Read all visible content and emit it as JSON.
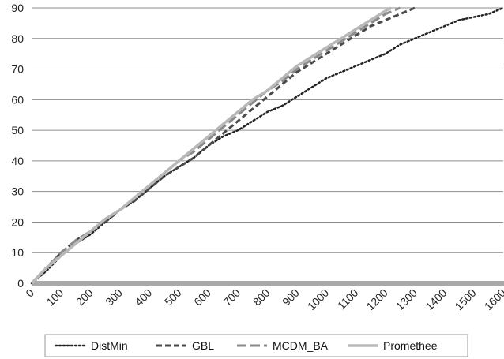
{
  "chart_data": {
    "type": "line",
    "title": "",
    "xlabel": "",
    "ylabel": "",
    "xlim": [
      0,
      1600
    ],
    "ylim": [
      0,
      90
    ],
    "x_ticks": [
      "0",
      "100",
      "200",
      "300",
      "400",
      "500",
      "600",
      "700",
      "800",
      "900",
      "1000",
      "1100",
      "1200",
      "1300",
      "1400",
      "1500",
      "1600"
    ],
    "y_ticks": [
      "0",
      "10",
      "20",
      "30",
      "40",
      "50",
      "60",
      "70",
      "80",
      "90"
    ],
    "grid": "horizontal",
    "legend_position": "bottom",
    "series": [
      {
        "name": "DistMin",
        "color": "#222222",
        "dash": "dotted",
        "points": [
          [
            0,
            0
          ],
          [
            50,
            4
          ],
          [
            100,
            9
          ],
          [
            150,
            13
          ],
          [
            200,
            16
          ],
          [
            250,
            20
          ],
          [
            300,
            24
          ],
          [
            350,
            27
          ],
          [
            400,
            31
          ],
          [
            450,
            35
          ],
          [
            500,
            38
          ],
          [
            550,
            41
          ],
          [
            600,
            45
          ],
          [
            650,
            48
          ],
          [
            700,
            50
          ],
          [
            750,
            53
          ],
          [
            800,
            56
          ],
          [
            850,
            58
          ],
          [
            900,
            61
          ],
          [
            950,
            64
          ],
          [
            1000,
            67
          ],
          [
            1050,
            69
          ],
          [
            1100,
            71
          ],
          [
            1150,
            73
          ],
          [
            1200,
            75
          ],
          [
            1250,
            78
          ],
          [
            1300,
            80
          ],
          [
            1350,
            82
          ],
          [
            1400,
            84
          ],
          [
            1450,
            86
          ],
          [
            1500,
            87
          ],
          [
            1550,
            88
          ],
          [
            1600,
            90
          ]
        ]
      },
      {
        "name": "GBL",
        "color": "#4a4a4a",
        "dash": "dashed",
        "points": [
          [
            0,
            0
          ],
          [
            50,
            5
          ],
          [
            100,
            10
          ],
          [
            150,
            14
          ],
          [
            200,
            17
          ],
          [
            250,
            20
          ],
          [
            300,
            24
          ],
          [
            350,
            27
          ],
          [
            400,
            31
          ],
          [
            450,
            35
          ],
          [
            500,
            38
          ],
          [
            550,
            41
          ],
          [
            600,
            45
          ],
          [
            650,
            49
          ],
          [
            700,
            53
          ],
          [
            750,
            57
          ],
          [
            800,
            61
          ],
          [
            850,
            65
          ],
          [
            900,
            69
          ],
          [
            950,
            72
          ],
          [
            1000,
            75
          ],
          [
            1050,
            78
          ],
          [
            1100,
            81
          ],
          [
            1150,
            84
          ],
          [
            1200,
            86
          ],
          [
            1250,
            88
          ],
          [
            1300,
            90
          ]
        ]
      },
      {
        "name": "MCDM_BA",
        "color": "#8a8a8a",
        "dash": "longdash",
        "points": [
          [
            0,
            0
          ],
          [
            50,
            5
          ],
          [
            100,
            10
          ],
          [
            150,
            14
          ],
          [
            200,
            17
          ],
          [
            250,
            21
          ],
          [
            300,
            24
          ],
          [
            350,
            28
          ],
          [
            400,
            32
          ],
          [
            450,
            36
          ],
          [
            500,
            40
          ],
          [
            550,
            43
          ],
          [
            600,
            47
          ],
          [
            650,
            51
          ],
          [
            700,
            55
          ],
          [
            750,
            59
          ],
          [
            800,
            63
          ],
          [
            850,
            66
          ],
          [
            900,
            70
          ],
          [
            950,
            73
          ],
          [
            1000,
            76
          ],
          [
            1050,
            79
          ],
          [
            1100,
            82
          ],
          [
            1150,
            85
          ],
          [
            1200,
            88
          ],
          [
            1250,
            90
          ]
        ]
      },
      {
        "name": "Promethee",
        "color": "#b8b8b8",
        "dash": "solid",
        "points": [
          [
            0,
            0
          ],
          [
            50,
            5
          ],
          [
            100,
            9
          ],
          [
            150,
            13
          ],
          [
            200,
            17
          ],
          [
            250,
            21
          ],
          [
            300,
            24
          ],
          [
            350,
            28
          ],
          [
            400,
            32
          ],
          [
            450,
            36
          ],
          [
            500,
            40
          ],
          [
            550,
            44
          ],
          [
            600,
            48
          ],
          [
            650,
            52
          ],
          [
            700,
            56
          ],
          [
            750,
            60
          ],
          [
            800,
            63
          ],
          [
            850,
            67
          ],
          [
            900,
            71
          ],
          [
            950,
            74
          ],
          [
            1000,
            77
          ],
          [
            1050,
            80
          ],
          [
            1100,
            83
          ],
          [
            1150,
            86
          ],
          [
            1200,
            89
          ],
          [
            1220,
            90
          ]
        ]
      }
    ]
  }
}
